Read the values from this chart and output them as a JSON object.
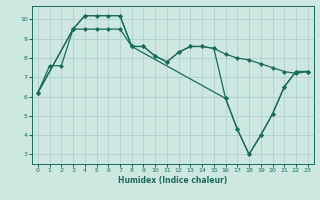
{
  "xlabel": "Humidex (Indice chaleur)",
  "bg_color": "#cce8e0",
  "grid_color": "#aacccc",
  "line_color": "#1a6b5a",
  "xlim": [
    -0.5,
    23.5
  ],
  "ylim": [
    2.5,
    10.7
  ],
  "yticks": [
    3,
    4,
    5,
    6,
    7,
    8,
    9,
    10
  ],
  "xticks": [
    0,
    1,
    2,
    3,
    4,
    5,
    6,
    7,
    8,
    9,
    10,
    11,
    12,
    13,
    14,
    15,
    16,
    17,
    18,
    19,
    20,
    21,
    22,
    23
  ],
  "line1_x": [
    0,
    1,
    2,
    3,
    4,
    5,
    6,
    7,
    8,
    9,
    10,
    11,
    12,
    13,
    14,
    15,
    16,
    17,
    18,
    19,
    20,
    21,
    22,
    23
  ],
  "line1_y": [
    6.2,
    7.6,
    7.6,
    9.5,
    9.5,
    9.5,
    9.5,
    9.5,
    8.6,
    8.6,
    8.1,
    7.8,
    8.3,
    8.6,
    8.6,
    8.5,
    8.2,
    8.0,
    7.9,
    7.7,
    7.5,
    7.3,
    7.2,
    7.3
  ],
  "line2_x": [
    0,
    3,
    4,
    5,
    6,
    7,
    8,
    9,
    10,
    11,
    12,
    13,
    14,
    15,
    16,
    17,
    18,
    19,
    20,
    21,
    22,
    23
  ],
  "line2_y": [
    6.2,
    9.5,
    10.2,
    10.2,
    10.2,
    10.2,
    8.6,
    8.6,
    8.1,
    7.8,
    8.3,
    8.6,
    8.6,
    8.5,
    5.9,
    4.3,
    3.0,
    4.0,
    5.1,
    6.5,
    7.3,
    7.3
  ],
  "line3_x": [
    0,
    3,
    4,
    7,
    8,
    16,
    17,
    18,
    19,
    20,
    21,
    22,
    23
  ],
  "line3_y": [
    6.2,
    9.5,
    10.2,
    10.2,
    8.6,
    5.9,
    4.3,
    3.0,
    4.0,
    5.1,
    6.5,
    7.3,
    7.3
  ]
}
